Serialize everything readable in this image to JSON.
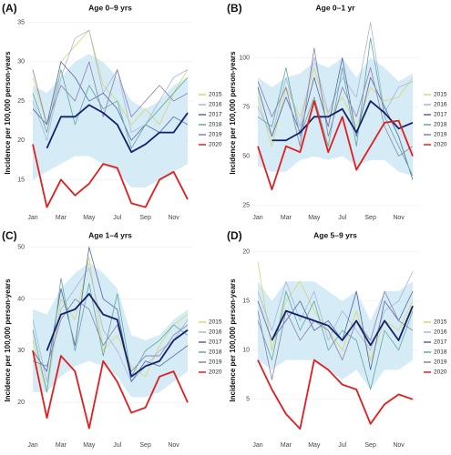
{
  "chart_data": [
    {
      "type": "line",
      "label": "(A)",
      "title": "Age 0–9 yrs",
      "y_label": "Incidence per 100,000 person-years",
      "categories": [
        "Jan",
        null,
        "Mar",
        null,
        "May",
        null,
        "Jul",
        null,
        "Sep",
        null,
        "Nov",
        null
      ],
      "ylim": [
        11,
        36
      ],
      "yticks": [
        15,
        20,
        25,
        30,
        35
      ],
      "series": [
        {
          "name": "2015",
          "color": "#d6d86a",
          "values": [
            28,
            22,
            30,
            32,
            34,
            27,
            25,
            22,
            24,
            22,
            26,
            29
          ]
        },
        {
          "name": "2016",
          "color": "#a9b6da",
          "values": [
            25,
            20,
            28,
            33,
            34,
            26,
            29,
            21,
            22,
            25,
            28,
            29
          ]
        },
        {
          "name": "2017",
          "color": "#56679e",
          "values": [
            24,
            22,
            30,
            28,
            25,
            26,
            24,
            20,
            22,
            21,
            23,
            22
          ]
        },
        {
          "name": "2018",
          "color": "#5fa89e",
          "values": [
            26,
            21,
            29,
            22,
            27,
            24,
            25,
            19,
            22,
            24,
            26,
            28
          ]
        },
        {
          "name": "2019",
          "color": "#8c7fa8",
          "values": [
            29,
            22,
            27,
            25,
            30,
            23,
            29,
            23,
            25,
            27,
            25,
            26
          ]
        },
        {
          "name": "2020",
          "color": "#e01e1e",
          "values": [
            19.5,
            11.5,
            15,
            13,
            14.5,
            17,
            16.5,
            12,
            11.5,
            15,
            16,
            12.5
          ]
        }
      ],
      "mean_values": [
        null,
        19,
        23,
        23,
        24.5,
        23.5,
        22,
        18.5,
        19.5,
        21,
        21,
        23.5
      ],
      "mean_color": "#14216b",
      "band_lower": [
        15,
        16,
        17,
        18,
        18,
        17,
        16,
        14,
        14,
        15,
        16,
        17
      ],
      "band_upper": [
        27,
        26,
        28,
        30,
        31,
        30,
        28,
        25,
        24,
        25,
        27,
        28
      ],
      "band_color": "#cbe6f4"
    },
    {
      "type": "line",
      "label": "(B)",
      "title": "Age 0–1 yr",
      "y_label": "Incidence per 100,000 person-years",
      "categories": [
        "Jan",
        null,
        "Mar",
        null,
        "May",
        null,
        "Jul",
        null,
        "Sep",
        null,
        "Nov",
        null
      ],
      "ylim": [
        22,
        122
      ],
      "yticks": [
        25,
        50,
        75,
        100
      ],
      "series": [
        {
          "name": "2015",
          "color": "#d6d86a",
          "values": [
            80,
            55,
            85,
            70,
            95,
            70,
            80,
            65,
            85,
            78,
            80,
            90
          ]
        },
        {
          "name": "2016",
          "color": "#a9b6da",
          "values": [
            75,
            60,
            90,
            65,
            100,
            72,
            90,
            80,
            118,
            72,
            85,
            88
          ]
        },
        {
          "name": "2017",
          "color": "#56679e",
          "values": [
            85,
            60,
            80,
            62,
            90,
            65,
            100,
            60,
            90,
            75,
            60,
            38
          ]
        },
        {
          "name": "2018",
          "color": "#5fa89e",
          "values": [
            70,
            65,
            95,
            60,
            80,
            55,
            95,
            55,
            110,
            70,
            55,
            40
          ]
        },
        {
          "name": "2019",
          "color": "#8c7fa8",
          "values": [
            88,
            70,
            85,
            55,
            105,
            60,
            85,
            70,
            95,
            65,
            50,
            55
          ]
        },
        {
          "name": "2020",
          "color": "#e01e1e",
          "values": [
            55,
            33,
            55,
            52,
            78,
            52,
            70,
            43,
            55,
            67,
            68,
            50
          ]
        }
      ],
      "mean_values": [
        null,
        58,
        58,
        62,
        70,
        70,
        74,
        62,
        78,
        72,
        64,
        67
      ],
      "mean_color": "#14216b",
      "band_lower": [
        45,
        42,
        42,
        48,
        50,
        48,
        50,
        45,
        48,
        48,
        42,
        40
      ],
      "band_upper": [
        90,
        85,
        90,
        92,
        98,
        95,
        100,
        90,
        100,
        95,
        88,
        92
      ],
      "band_color": "#cbe6f4"
    },
    {
      "type": "line",
      "label": "(C)",
      "title": "Age 1–4 yrs",
      "y_label": "Incidence per 100,000 person-years",
      "categories": [
        "Jan",
        null,
        "Mar",
        null,
        "May",
        null,
        "Jul",
        null,
        "Sep",
        null,
        "Nov",
        null
      ],
      "ylim": [
        13,
        51
      ],
      "yticks": [
        20,
        30,
        40,
        50
      ],
      "series": [
        {
          "name": "2015",
          "color": "#d6d86a",
          "values": [
            32,
            22,
            40,
            36,
            48,
            30,
            33,
            27,
            25,
            31,
            35,
            37
          ]
        },
        {
          "name": "2016",
          "color": "#a9b6da",
          "values": [
            36,
            24,
            38,
            42,
            46,
            34,
            30,
            24,
            27,
            30,
            32,
            36
          ]
        },
        {
          "name": "2017",
          "color": "#56679e",
          "values": [
            30,
            26,
            42,
            31,
            50,
            40,
            38,
            24,
            28,
            27,
            29,
            31
          ]
        },
        {
          "name": "2018",
          "color": "#5fa89e",
          "values": [
            34,
            22,
            44,
            30,
            43,
            29,
            41,
            25,
            30,
            32,
            35,
            33
          ]
        },
        {
          "name": "2019",
          "color": "#8c7fa8",
          "values": [
            28,
            27,
            36,
            40,
            38,
            31,
            35,
            26,
            29,
            29,
            33,
            35
          ]
        },
        {
          "name": "2020",
          "color": "#e01e1e",
          "values": [
            30,
            17,
            29,
            26,
            15,
            28,
            24,
            18,
            19,
            25,
            26,
            20
          ]
        }
      ],
      "mean_values": [
        null,
        30,
        37,
        38,
        41,
        37,
        36,
        25,
        27,
        28,
        32,
        34
      ],
      "mean_color": "#14216b",
      "band_lower": [
        22,
        22,
        25,
        27,
        28,
        27,
        25,
        21,
        21,
        22,
        24,
        26
      ],
      "band_upper": [
        38,
        37,
        42,
        45,
        47,
        45,
        42,
        33,
        32,
        33,
        36,
        38
      ],
      "band_color": "#cbe6f4"
    },
    {
      "type": "line",
      "label": "(D)",
      "title": "Age 5–9 yrs",
      "y_label": "Incidence per 100,000 person-years",
      "categories": [
        "Jan",
        null,
        "Mar",
        null,
        "May",
        null,
        "Jul",
        null,
        "Sep",
        null,
        "Nov",
        null
      ],
      "ylim": [
        1,
        21
      ],
      "yticks": [
        5,
        10,
        15,
        20
      ],
      "series": [
        {
          "name": "2015",
          "color": "#d6d86a",
          "values": [
            19,
            10,
            15,
            17,
            14,
            12,
            10,
            14,
            9,
            13,
            12,
            15
          ]
        },
        {
          "name": "2016",
          "color": "#a9b6da",
          "values": [
            16,
            12,
            17,
            13,
            16,
            11,
            14,
            12,
            10,
            14,
            15,
            18
          ]
        },
        {
          "name": "2017",
          "color": "#56679e",
          "values": [
            15,
            11,
            13,
            15,
            12,
            13,
            11,
            16,
            8,
            15,
            13,
            16
          ]
        },
        {
          "name": "2018",
          "color": "#5fa89e",
          "values": [
            13,
            9,
            16,
            12,
            15,
            10,
            12,
            11,
            6,
            12,
            10,
            14
          ]
        },
        {
          "name": "2019",
          "color": "#8c7fa8",
          "values": [
            14,
            7,
            14,
            11,
            13,
            12,
            9,
            13,
            11,
            16,
            13,
            12
          ]
        },
        {
          "name": "2020",
          "color": "#e01e1e",
          "values": [
            9,
            6,
            3.5,
            2,
            9,
            8,
            6.5,
            6,
            2.5,
            4.5,
            5.5,
            5
          ]
        }
      ],
      "mean_values": [
        null,
        11,
        14,
        13.5,
        13,
        12.5,
        11,
        13,
        10.5,
        13,
        11,
        14.5
      ],
      "mean_color": "#14216b",
      "band_lower": [
        9,
        8,
        9,
        9,
        9,
        8,
        7,
        8,
        6,
        8,
        8,
        9
      ],
      "band_upper": [
        17,
        15,
        17,
        17,
        17,
        16,
        15,
        16,
        13,
        16,
        16,
        17
      ],
      "band_color": "#cbe6f4"
    }
  ]
}
